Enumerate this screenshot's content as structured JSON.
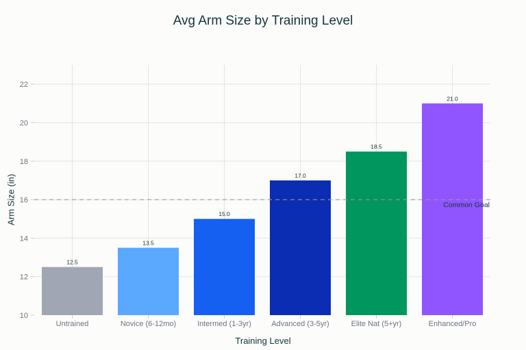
{
  "chart_data": {
    "type": "bar",
    "title": "Avg Arm Size by Training Level",
    "xlabel": "Training Level",
    "ylabel": "Arm Size (in)",
    "categories": [
      "Untrained",
      "Novice (6-12mo)",
      "Intermed (1-3yr)",
      "Advanced (3-5yr)",
      "Elite Nat (5+yr)",
      "Enhanced/Pro"
    ],
    "values": [
      12.5,
      13.5,
      15.0,
      17.0,
      18.5,
      21.0
    ],
    "value_labels": [
      "12.5",
      "13.5",
      "15.0",
      "17.0",
      "18.5",
      "21.0"
    ],
    "colors": [
      "#a1a6b4",
      "#5aa8ff",
      "#1560f0",
      "#0a2db3",
      "#00965e",
      "#9055ff"
    ],
    "ylim": [
      10,
      23
    ],
    "yticks": [
      10,
      12,
      14,
      16,
      18,
      20,
      22
    ],
    "grid": true,
    "reference_line": {
      "y": 16,
      "label": "Common Goal",
      "style": "dashed",
      "color": "#999999"
    }
  }
}
